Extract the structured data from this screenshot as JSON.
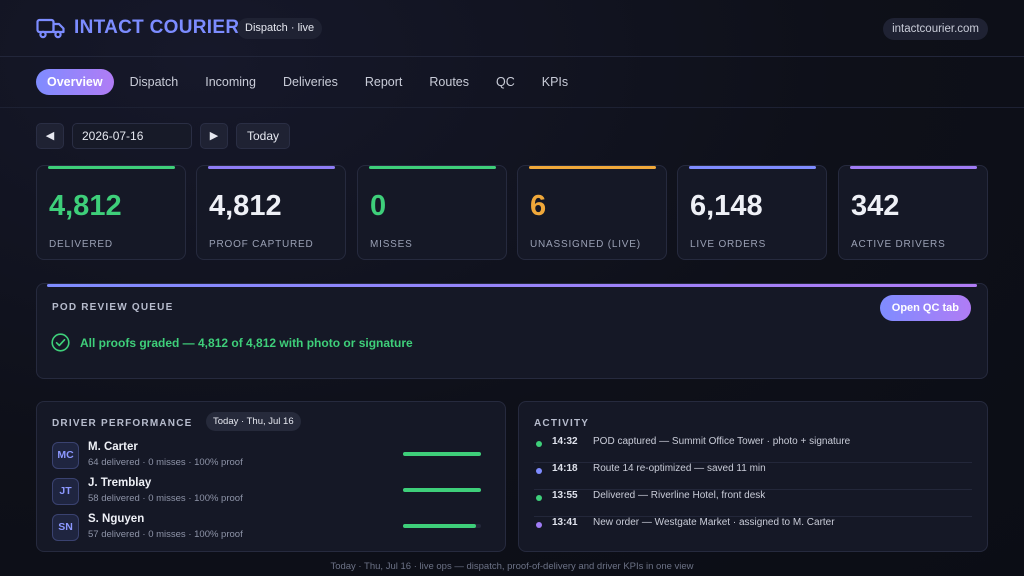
{
  "header": {
    "brand": "INTACT COURIER",
    "status_pill": "Dispatch · live",
    "domain": "intactcourier.com",
    "logo_icon": "truck-icon"
  },
  "tabs": [
    {
      "label": "Overview",
      "active": true
    },
    {
      "label": "Dispatch",
      "active": false
    },
    {
      "label": "Incoming",
      "active": false
    },
    {
      "label": "Deliveries",
      "active": false
    },
    {
      "label": "Report",
      "active": false
    },
    {
      "label": "Routes",
      "active": false
    },
    {
      "label": "QC",
      "active": false
    },
    {
      "label": "KPIs",
      "active": false
    }
  ],
  "date_nav": {
    "prev": "◀",
    "date": "2026-07-16",
    "next": "▶",
    "today_label": "Today"
  },
  "kpis": [
    {
      "value": "4,812",
      "label": "DELIVERED",
      "value_color": "#3ecf7a",
      "bar_color": "#3ecf7a"
    },
    {
      "value": "4,812",
      "label": "PROOF CAPTURED",
      "value_color": "#eef0f6",
      "bar_color": "#8e7cf5"
    },
    {
      "value": "0",
      "label": "MISSES",
      "value_color": "#3ecf7a",
      "bar_color": "#3ecf7a"
    },
    {
      "value": "6",
      "label": "UNASSIGNED (LIVE)",
      "value_color": "#f0a83a",
      "bar_color": "#f0a83a"
    },
    {
      "value": "6,148",
      "label": "LIVE ORDERS",
      "value_color": "#eef0f6",
      "bar_color": "#7f8cff"
    },
    {
      "value": "342",
      "label": "ACTIVE DRIVERS",
      "value_color": "#eef0f6",
      "bar_color": "#a07cf5"
    }
  ],
  "pod_review": {
    "title": "POD REVIEW QUEUE",
    "button": "Open QC tab",
    "message": "All proofs graded — 4,812 of 4,812 with photo or signature"
  },
  "driver_performance": {
    "title": "DRIVER PERFORMANCE",
    "date_pill": "Today · Thu, Jul 16",
    "drivers": [
      {
        "initials": "MC",
        "name": "M. Carter",
        "stats": "64 delivered · 0 misses · 100% proof",
        "bar": 1.0
      },
      {
        "initials": "JT",
        "name": "J. Tremblay",
        "stats": "58 delivered · 0 misses · 100% proof",
        "bar": 1.0
      },
      {
        "initials": "SN",
        "name": "S. Nguyen",
        "stats": "57 delivered · 0 misses · 100% proof",
        "bar": 0.94
      }
    ]
  },
  "activity": {
    "title": "ACTIVITY",
    "items": [
      {
        "time": "14:32",
        "text": "POD captured — Summit Office Tower · photo + signature",
        "color": "#3ecf7a"
      },
      {
        "time": "14:18",
        "text": "Route 14 re-optimized — saved 11 min",
        "color": "#7f8cff"
      },
      {
        "time": "13:55",
        "text": "Delivered — Riverline Hotel, front desk",
        "color": "#3ecf7a"
      },
      {
        "time": "13:41",
        "text": "New order — Westgate Market · assigned to M. Carter",
        "color": "#a07cf5"
      }
    ]
  },
  "footer": "Today · Thu, Jul 16 · live ops — dispatch, proof-of-delivery and driver KPIs in one view"
}
